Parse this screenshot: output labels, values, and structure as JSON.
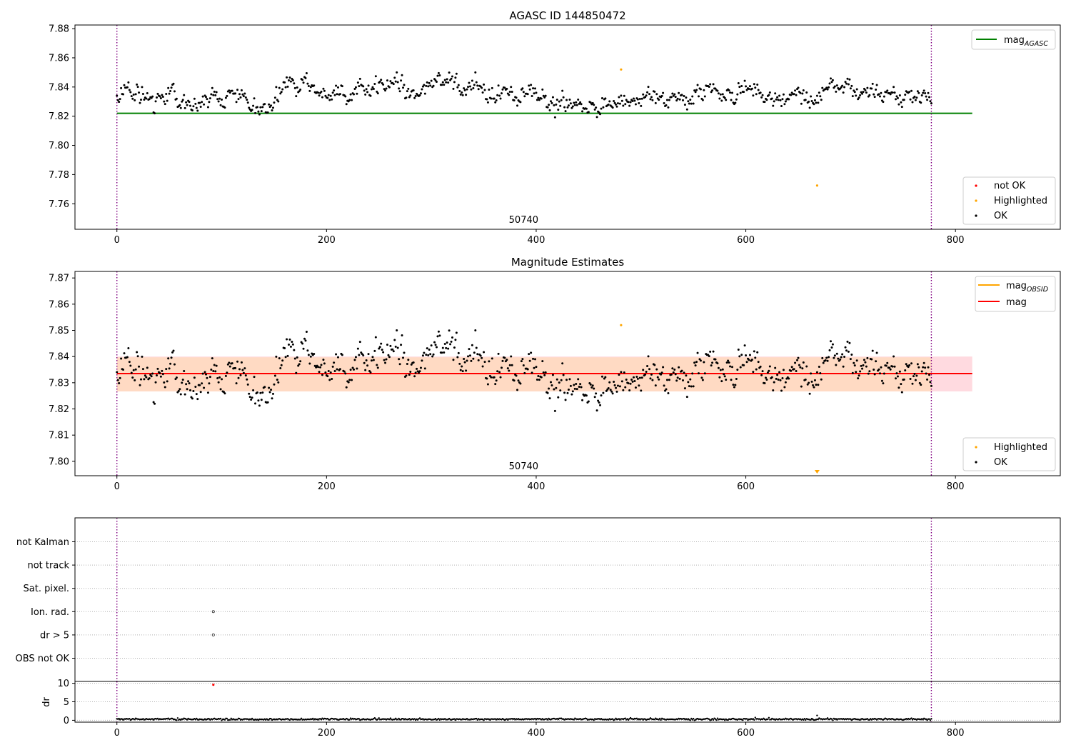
{
  "colors": {
    "ok": "#000000",
    "highlighted": "#ffa500",
    "not_ok": "#ff0000",
    "mag_agasc": "#008000",
    "mag_obsid": "#ffa500",
    "mag": "#ff0000",
    "band_outer": "#ffb6c1",
    "band_inner": "#ffdab9",
    "obs_boundary": "#800080",
    "grid": "#b0b0b0"
  },
  "chart_data": [
    {
      "type": "scatter",
      "title": "AGASC ID 144850472",
      "xlim": [
        -40,
        900
      ],
      "ylim": [
        7.7425,
        7.8825
      ],
      "xticks": [
        0,
        200,
        400,
        600,
        800
      ],
      "yticks": [
        7.76,
        7.78,
        7.8,
        7.82,
        7.84,
        7.86,
        7.88
      ],
      "ytick_labels": [
        "7.76",
        "7.78",
        "7.80",
        "7.82",
        "7.84",
        "7.86",
        "7.88"
      ],
      "n_points": 778,
      "ok_mean": 7.8335,
      "ok_spread": 0.0065,
      "ok_min": 7.815,
      "ok_max": 7.85,
      "highlighted_points": [
        [
          481,
          7.852
        ],
        [
          668,
          7.7725
        ]
      ],
      "not_ok_points": [],
      "obs_boundaries": [
        0,
        777
      ],
      "obs_label": "50740",
      "obs_label_x": 388,
      "lines": [
        {
          "name": "mag_AGASC",
          "y": 7.822,
          "x": [
            0,
            816
          ]
        }
      ],
      "legend_lines": [
        {
          "base": "mag",
          "sub": "AGASC"
        }
      ],
      "legend_markers": [
        "not OK",
        "Highlighted",
        "OK"
      ]
    },
    {
      "type": "scatter",
      "title": "Magnitude Estimates",
      "xlim": [
        -40,
        900
      ],
      "ylim": [
        7.7945,
        7.8725
      ],
      "xticks": [
        0,
        200,
        400,
        600,
        800
      ],
      "yticks": [
        7.8,
        7.81,
        7.82,
        7.83,
        7.84,
        7.85,
        7.86,
        7.87
      ],
      "ytick_labels": [
        "7.80",
        "7.81",
        "7.82",
        "7.83",
        "7.84",
        "7.85",
        "7.86",
        "7.87"
      ],
      "band_outer": [
        7.8267,
        7.84
      ],
      "band_inner": [
        7.8267,
        7.8397
      ],
      "band_x": [
        0,
        816
      ],
      "lines": [
        {
          "name": "mag",
          "y": 7.8335,
          "x": [
            0,
            816
          ]
        },
        {
          "name": "mag_OBSID",
          "y": 7.8333,
          "x": [
            0,
            777
          ]
        }
      ],
      "highlighted_points": [
        [
          481,
          7.852
        ]
      ],
      "off_axis_marker": [
        668,
        7.7725
      ],
      "obs_boundaries": [
        0,
        777
      ],
      "obs_label": "50740",
      "obs_label_x": 388,
      "legend_lines": [
        {
          "base": "mag",
          "sub": "OBSID"
        },
        {
          "base": "mag",
          "sub": ""
        }
      ],
      "legend_markers": [
        "Highlighted",
        "OK"
      ]
    },
    {
      "type": "scatter",
      "title": "",
      "xlim": [
        -40,
        900
      ],
      "categories": [
        "OBS not OK",
        "dr > 5",
        "Ion. rad.",
        "Sat. pixel.",
        "not track",
        "not Kalman"
      ],
      "flag_points": [
        {
          "category": "dr > 5",
          "x": 92
        },
        {
          "category": "Ion. rad.",
          "x": 92
        }
      ],
      "obs_boundaries": [
        0,
        777
      ]
    },
    {
      "type": "scatter",
      "title": "",
      "xlim": [
        -40,
        900
      ],
      "ylim": [
        -0.5,
        10.5
      ],
      "xticks": [
        0,
        200,
        400,
        600,
        800
      ],
      "yticks": [
        0,
        5,
        10
      ],
      "ytick_labels": [
        "0",
        "5",
        "10"
      ],
      "ylabel": "dr",
      "dr_baseline": 0.3,
      "dr_outliers": [
        [
          668,
          1.3
        ]
      ],
      "not_ok_points": [
        [
          92,
          9.6
        ]
      ],
      "obs_boundaries": [
        0,
        777
      ]
    }
  ]
}
